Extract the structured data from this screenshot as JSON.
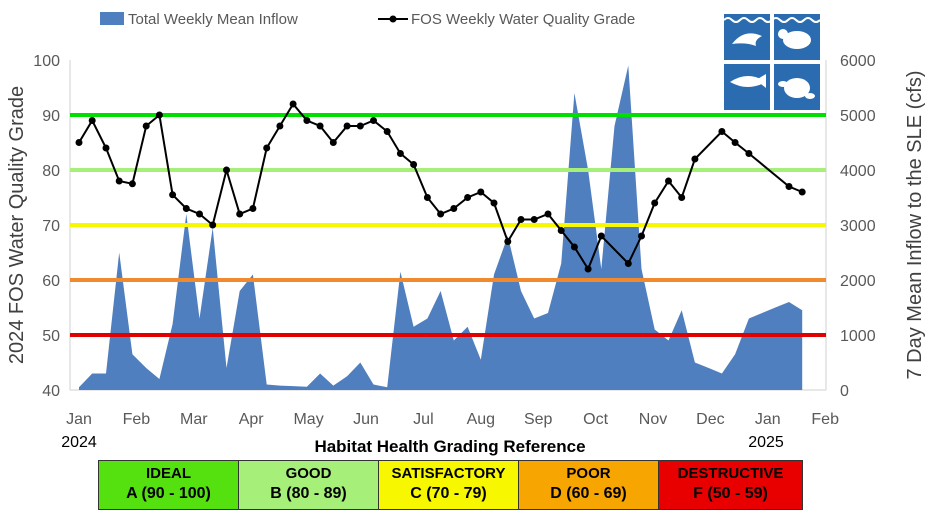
{
  "chart_data": {
    "type": "area+line",
    "x_axis": {
      "ticks": [
        "Jan",
        "Feb",
        "Mar",
        "Apr",
        "May",
        "Jun",
        "Jul",
        "Aug",
        "Sep",
        "Oct",
        "Nov",
        "Dec",
        "Jan",
        "Feb"
      ],
      "year_labels": [
        "2024",
        "2025"
      ]
    },
    "y_left": {
      "label": "2024 FOS Water Quality Grade",
      "ylim": [
        40,
        100
      ],
      "ticks": [
        40,
        50,
        60,
        70,
        80,
        90,
        100
      ]
    },
    "y_right": {
      "label": "7 Day Mean Inflow to the SLE (cfs)",
      "ylim": [
        0,
        6000
      ],
      "ticks": [
        0,
        1000,
        2000,
        3000,
        4000,
        5000,
        6000
      ]
    },
    "legend": [
      "Total Weekly Mean Inflow",
      "FOS Weekly Water Quality Grade"
    ],
    "threshold_lines": [
      {
        "value": 90,
        "color": "#00e000"
      },
      {
        "value": 80,
        "color": "#a6f07a"
      },
      {
        "value": 70,
        "color": "#f7f700"
      },
      {
        "value": 60,
        "color": "#f08a2d"
      },
      {
        "value": 50,
        "color": "#e00000"
      }
    ],
    "series": [
      {
        "name": "Total Weekly Mean Inflow",
        "kind": "area",
        "axis": "right",
        "color": "#4f7fbf",
        "points": [
          [
            0,
            50
          ],
          [
            0.23,
            300
          ],
          [
            0.47,
            300
          ],
          [
            0.7,
            2500
          ],
          [
            0.93,
            650
          ],
          [
            1.17,
            400
          ],
          [
            1.4,
            200
          ],
          [
            1.63,
            1200
          ],
          [
            1.87,
            3200
          ],
          [
            2.1,
            1300
          ],
          [
            2.33,
            2950
          ],
          [
            2.57,
            400
          ],
          [
            2.8,
            1800
          ],
          [
            3.03,
            2100
          ],
          [
            3.27,
            100
          ],
          [
            3.5,
            80
          ],
          [
            3.73,
            70
          ],
          [
            3.97,
            60
          ],
          [
            4.2,
            300
          ],
          [
            4.43,
            80
          ],
          [
            4.67,
            250
          ],
          [
            4.9,
            500
          ],
          [
            5.13,
            100
          ],
          [
            5.37,
            50
          ],
          [
            5.6,
            2150
          ],
          [
            5.83,
            1150
          ],
          [
            6.07,
            1300
          ],
          [
            6.3,
            1800
          ],
          [
            6.53,
            900
          ],
          [
            6.77,
            1150
          ],
          [
            7.0,
            550
          ],
          [
            7.23,
            2100
          ],
          [
            7.47,
            2800
          ],
          [
            7.7,
            1800
          ],
          [
            7.93,
            1300
          ],
          [
            8.17,
            1400
          ],
          [
            8.4,
            2300
          ],
          [
            8.63,
            5400
          ],
          [
            8.87,
            4000
          ],
          [
            9.1,
            2200
          ],
          [
            9.33,
            4800
          ],
          [
            9.57,
            5900
          ],
          [
            9.8,
            2200
          ],
          [
            10.03,
            1100
          ],
          [
            10.27,
            900
          ],
          [
            10.5,
            1450
          ],
          [
            10.73,
            500
          ],
          [
            10.97,
            400
          ],
          [
            11.2,
            300
          ],
          [
            11.43,
            650
          ],
          [
            11.67,
            1300
          ],
          [
            11.9,
            1400
          ],
          [
            12.13,
            1500
          ],
          [
            12.37,
            1600
          ],
          [
            12.6,
            1450
          ]
        ]
      },
      {
        "name": "FOS Weekly Water Quality Grade",
        "kind": "line",
        "axis": "left",
        "color": "#000000",
        "points": [
          [
            0,
            85
          ],
          [
            0.23,
            89
          ],
          [
            0.47,
            84
          ],
          [
            0.7,
            78
          ],
          [
            0.93,
            77.5
          ],
          [
            1.17,
            88
          ],
          [
            1.4,
            90
          ],
          [
            1.63,
            75.5
          ],
          [
            1.87,
            73
          ],
          [
            2.1,
            72
          ],
          [
            2.33,
            70
          ],
          [
            2.57,
            80
          ],
          [
            2.8,
            72
          ],
          [
            3.03,
            73
          ],
          [
            3.27,
            84
          ],
          [
            3.5,
            88
          ],
          [
            3.73,
            92
          ],
          [
            3.97,
            89
          ],
          [
            4.2,
            88
          ],
          [
            4.43,
            85
          ],
          [
            4.67,
            88
          ],
          [
            4.9,
            88
          ],
          [
            5.13,
            89
          ],
          [
            5.37,
            87
          ],
          [
            5.6,
            83
          ],
          [
            5.83,
            81
          ],
          [
            6.07,
            75
          ],
          [
            6.3,
            72
          ],
          [
            6.53,
            73
          ],
          [
            6.77,
            75
          ],
          [
            7.0,
            76
          ],
          [
            7.23,
            74
          ],
          [
            7.47,
            67
          ],
          [
            7.7,
            71
          ],
          [
            7.93,
            71
          ],
          [
            8.17,
            72
          ],
          [
            8.4,
            69
          ],
          [
            8.63,
            66
          ],
          [
            8.87,
            62
          ],
          [
            9.1,
            68
          ],
          [
            9.57,
            63
          ],
          [
            9.8,
            68
          ],
          [
            10.03,
            74
          ],
          [
            10.27,
            78
          ],
          [
            10.5,
            75
          ],
          [
            10.73,
            82
          ],
          [
            11.2,
            87
          ],
          [
            11.43,
            85
          ],
          [
            11.67,
            83
          ],
          [
            12.37,
            77
          ],
          [
            12.6,
            76
          ]
        ]
      }
    ]
  },
  "reference": {
    "title": "Habitat Health Grading Reference",
    "grades": [
      {
        "name": "IDEAL",
        "range": "A (90 - 100)",
        "color": "#55e00f",
        "text_color": "#000000"
      },
      {
        "name": "GOOD",
        "range": "B (80 - 89)",
        "color": "#a6f07a",
        "text_color": "#000000"
      },
      {
        "name": "SATISFACTORY",
        "range": "C (70 - 79)",
        "color": "#f7f700",
        "text_color": "#000000"
      },
      {
        "name": "POOR",
        "range": "D (60 - 69)",
        "color": "#f7a500",
        "text_color": "#000000"
      },
      {
        "name": "DESTRUCTIVE",
        "range": "F (50 - 59)",
        "color": "#e80000",
        "text_color": "#000000"
      }
    ]
  },
  "logo": {
    "name": "wildlife-logo-icon",
    "color": "#2b6cb0"
  }
}
